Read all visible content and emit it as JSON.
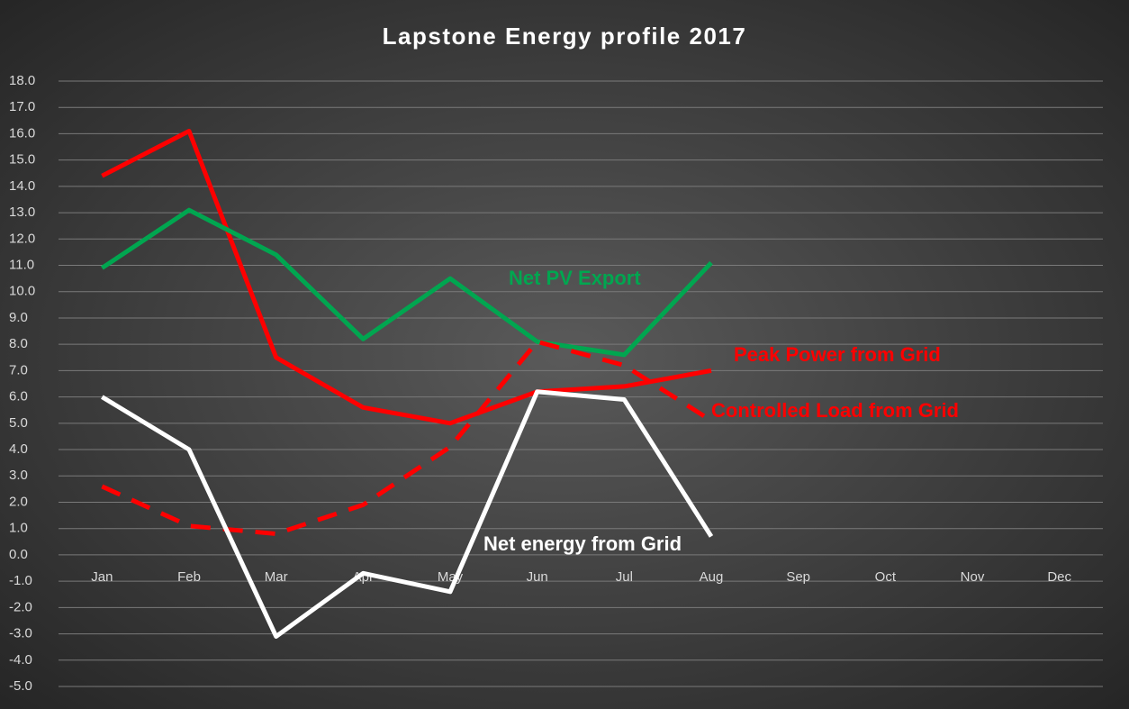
{
  "chart_data": {
    "type": "line",
    "title": "Lapstone Energy profile 2017",
    "categories": [
      "Jan",
      "Feb",
      "Mar",
      "Apr",
      "May",
      "Jun",
      "Jul",
      "Aug",
      "Sep",
      "Oct",
      "Nov",
      "Dec"
    ],
    "series": [
      {
        "name": "Peak Power from Grid",
        "color": "#ff0000",
        "dashed": false,
        "values": [
          14.4,
          16.1,
          7.5,
          5.6,
          5.0,
          6.2,
          6.4,
          7.0,
          null,
          null,
          null,
          null
        ]
      },
      {
        "name": "Net PV Export",
        "color": "#00a650",
        "dashed": false,
        "values": [
          10.9,
          13.1,
          11.4,
          8.2,
          10.5,
          8.1,
          7.6,
          11.1,
          null,
          null,
          null,
          null
        ]
      },
      {
        "name": "Controlled Load from Grid",
        "color": "#ff0000",
        "dashed": true,
        "values": [
          2.6,
          1.1,
          0.8,
          1.9,
          4.1,
          8.1,
          7.2,
          5.1,
          null,
          null,
          null,
          null
        ]
      },
      {
        "name": "Net energy from Grid",
        "color": "#ffffff",
        "dashed": false,
        "values": [
          6.0,
          4.0,
          -3.1,
          -0.7,
          -1.4,
          6.2,
          5.9,
          0.7,
          null,
          null,
          null,
          null
        ]
      }
    ],
    "ylim": [
      -5,
      18
    ],
    "yticks": [
      {
        "value": 18,
        "label": "18.0"
      },
      {
        "value": 17,
        "label": "17.0"
      },
      {
        "value": 16,
        "label": "16.0"
      },
      {
        "value": 15,
        "label": "15.0"
      },
      {
        "value": 14,
        "label": "14.0"
      },
      {
        "value": 13,
        "label": "13.0"
      },
      {
        "value": 12,
        "label": "12.0"
      },
      {
        "value": 11,
        "label": "11.0"
      },
      {
        "value": 10,
        "label": "10.0"
      },
      {
        "value": 9,
        "label": "9.0"
      },
      {
        "value": 8,
        "label": "8.0"
      },
      {
        "value": 7,
        "label": "7.0"
      },
      {
        "value": 6,
        "label": "6.0"
      },
      {
        "value": 5,
        "label": "5.0"
      },
      {
        "value": 4,
        "label": "4.0"
      },
      {
        "value": 3,
        "label": "3.0"
      },
      {
        "value": 2,
        "label": "2.0"
      },
      {
        "value": 1,
        "label": "1.0"
      },
      {
        "value": 0,
        "label": "0.0"
      },
      {
        "value": -1,
        "label": "-1.0"
      },
      {
        "value": -2,
        "label": "-2.0"
      },
      {
        "value": -3,
        "label": "-3.0"
      },
      {
        "value": -4,
        "label": "-4.0"
      },
      {
        "value": -5,
        "label": "-5.0"
      }
    ],
    "grid": true
  }
}
